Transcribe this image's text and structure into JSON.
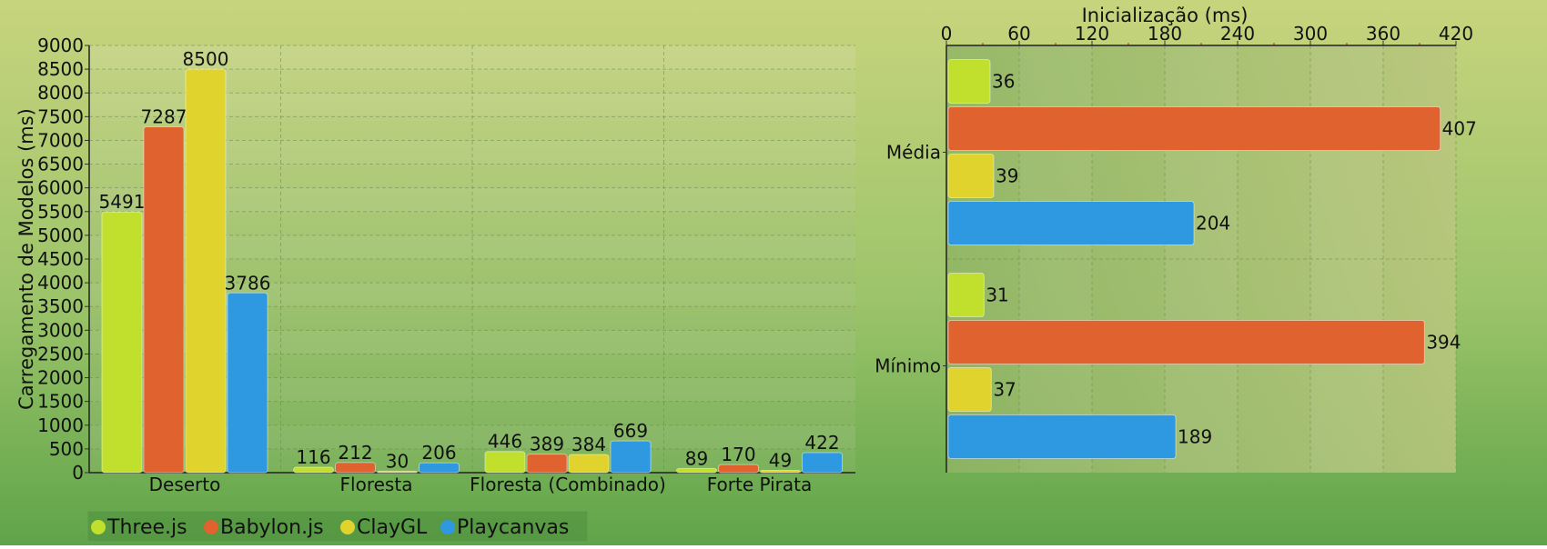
{
  "chart_data": [
    {
      "type": "bar",
      "orientation": "vertical",
      "categories": [
        "Deserto",
        "Floresta",
        "Floresta (Combinado)",
        "Forte Pirata"
      ],
      "series": [
        {
          "name": "Three.js",
          "values": [
            5491,
            116,
            446,
            89
          ]
        },
        {
          "name": "Babylon.js",
          "values": [
            7287,
            212,
            389,
            170
          ]
        },
        {
          "name": "ClayGL",
          "values": [
            8500,
            30,
            384,
            49
          ]
        },
        {
          "name": "Playcanvas",
          "values": [
            3786,
            206,
            669,
            422
          ]
        }
      ],
      "title": "",
      "xlabel": "",
      "ylabel": "Carregamento de Modelos (ms)",
      "ylim": [
        0,
        9000
      ],
      "yticks": [
        0,
        500,
        1000,
        1500,
        2000,
        2500,
        3000,
        3500,
        4000,
        4500,
        5000,
        5500,
        6000,
        6500,
        7000,
        7500,
        8000,
        8500,
        9000
      ],
      "grid": true,
      "data_labels": true
    },
    {
      "type": "bar",
      "orientation": "horizontal",
      "categories": [
        "Média",
        "Mínimo"
      ],
      "series": [
        {
          "name": "Three.js",
          "values": [
            36,
            31
          ]
        },
        {
          "name": "Babylon.js",
          "values": [
            407,
            394
          ]
        },
        {
          "name": "ClayGL",
          "values": [
            39,
            37
          ]
        },
        {
          "name": "Playcanvas",
          "values": [
            204,
            189
          ]
        }
      ],
      "title": "",
      "xlabel": "Inicialização (ms)",
      "ylabel": "",
      "xlim": [
        0,
        420
      ],
      "xticks": [
        0,
        60,
        120,
        180,
        240,
        300,
        360,
        420
      ],
      "x_axis_position": "top",
      "grid": true,
      "data_labels": true
    }
  ],
  "legend": {
    "placement": "bottom-left",
    "entries": [
      "Three.js",
      "Babylon.js",
      "ClayGL",
      "Playcanvas"
    ]
  },
  "colors": {
    "series": [
      "#c1e02d",
      "#e0622f",
      "#e0d32d",
      "#2e98e0"
    ]
  }
}
